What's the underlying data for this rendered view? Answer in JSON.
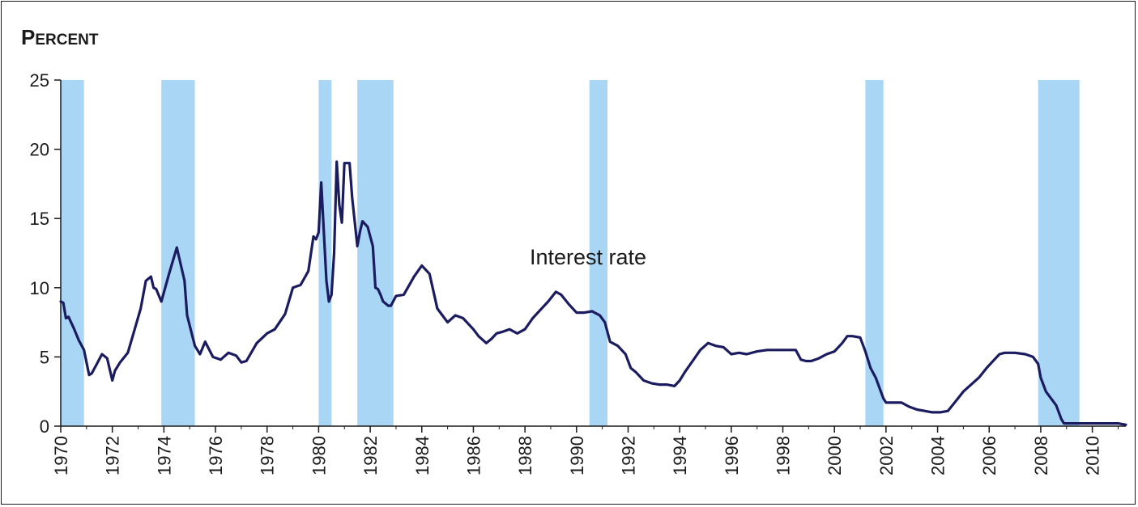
{
  "chart_data": {
    "type": "line",
    "ylabel": "Percent",
    "ylim": [
      0,
      25
    ],
    "yticks": [
      0,
      5,
      10,
      15,
      20,
      25
    ],
    "xlim": [
      1970,
      2011.3
    ],
    "xticks": [
      "1970",
      "1972",
      "1974",
      "1976",
      "1978",
      "1980",
      "1982",
      "1984",
      "1986",
      "1988",
      "1990",
      "1992",
      "1994",
      "1996",
      "1998",
      "2000",
      "2002",
      "2004",
      "2006",
      "2008",
      "2010"
    ],
    "annotation": "Interest rate",
    "shaded_periods": [
      [
        1970.0,
        1970.9
      ],
      [
        1973.9,
        1975.2
      ],
      [
        1980.0,
        1980.5
      ],
      [
        1981.5,
        1982.9
      ],
      [
        1990.5,
        1991.2
      ],
      [
        2001.2,
        2001.9
      ],
      [
        2007.9,
        2009.5
      ]
    ],
    "series": [
      {
        "x": [
          1970.0,
          1970.1,
          1970.2,
          1970.3,
          1970.5,
          1970.7,
          1970.9,
          1971.1,
          1971.2,
          1971.4,
          1971.6,
          1971.8,
          1972.0,
          1972.1,
          1972.3,
          1972.6,
          1972.9,
          1973.1,
          1973.3,
          1973.5,
          1973.6,
          1973.7,
          1973.9,
          1974.2,
          1974.5,
          1974.8,
          1974.9,
          1975.2,
          1975.4,
          1975.6,
          1975.9,
          1976.2,
          1976.5,
          1976.8,
          1977.0,
          1977.2,
          1977.6,
          1978.0,
          1978.3,
          1978.7,
          1979.0,
          1979.3,
          1979.6,
          1979.8,
          1979.9,
          1980.0,
          1980.1,
          1980.3,
          1980.4,
          1980.5,
          1980.6,
          1980.7,
          1980.8,
          1980.9,
          1981.0,
          1981.2,
          1981.3,
          1981.5,
          1981.6,
          1981.7,
          1981.9,
          1982.1,
          1982.2,
          1982.3,
          1982.4,
          1982.5,
          1982.7,
          1982.8,
          1983.0,
          1983.3,
          1983.7,
          1984.0,
          1984.3,
          1984.6,
          1984.8,
          1985.0,
          1985.3,
          1985.6,
          1986.0,
          1986.2,
          1986.5,
          1986.7,
          1986.9,
          1987.1,
          1987.4,
          1987.7,
          1988.0,
          1988.3,
          1988.6,
          1988.9,
          1989.2,
          1989.4,
          1989.7,
          1990.0,
          1990.3,
          1990.6,
          1990.9,
          1991.1,
          1991.3,
          1991.6,
          1991.9,
          1992.1,
          1992.3,
          1992.6,
          1992.9,
          1993.2,
          1993.5,
          1993.8,
          1994.0,
          1994.2,
          1994.5,
          1994.8,
          1995.1,
          1995.4,
          1995.7,
          1996.0,
          1996.3,
          1996.6,
          1997.0,
          1997.4,
          1997.8,
          1998.2,
          1998.5,
          1998.7,
          1998.9,
          1999.1,
          1999.4,
          1999.7,
          2000.0,
          2000.3,
          2000.5,
          2000.7,
          2001.0,
          2001.2,
          2001.4,
          2001.6,
          2001.8,
          2001.9,
          2002.0,
          2002.3,
          2002.6,
          2002.9,
          2003.2,
          2003.5,
          2003.8,
          2004.1,
          2004.4,
          2004.7,
          2005.0,
          2005.3,
          2005.6,
          2005.9,
          2006.2,
          2006.4,
          2006.6,
          2007.0,
          2007.4,
          2007.7,
          2007.9,
          2008.0,
          2008.2,
          2008.4,
          2008.6,
          2008.8,
          2008.9,
          2009.0,
          2009.2,
          2009.6,
          2010.0,
          2010.5,
          2011.0,
          2011.3
        ],
        "values": [
          9.0,
          8.9,
          7.8,
          7.9,
          7.1,
          6.2,
          5.5,
          3.7,
          3.8,
          4.5,
          5.2,
          4.9,
          3.3,
          4.0,
          4.6,
          5.3,
          7.2,
          8.5,
          10.5,
          10.8,
          10.0,
          9.9,
          9.0,
          11.0,
          12.9,
          10.5,
          8.0,
          5.8,
          5.2,
          6.1,
          5.0,
          4.8,
          5.3,
          5.1,
          4.6,
          4.7,
          6.0,
          6.7,
          7.0,
          8.1,
          10.0,
          10.2,
          11.2,
          13.7,
          13.5,
          14.0,
          17.6,
          10.5,
          9.0,
          9.5,
          12.5,
          19.1,
          16.0,
          14.7,
          19.0,
          19.0,
          16.5,
          13.0,
          14.0,
          14.8,
          14.4,
          13.0,
          10.0,
          9.9,
          9.5,
          9.0,
          8.7,
          8.7,
          9.4,
          9.5,
          10.8,
          11.6,
          11.0,
          8.5,
          8.0,
          7.5,
          8.0,
          7.8,
          7.0,
          6.5,
          6.0,
          6.3,
          6.7,
          6.8,
          7.0,
          6.7,
          7.0,
          7.8,
          8.4,
          9.0,
          9.7,
          9.5,
          8.8,
          8.2,
          8.2,
          8.3,
          8.0,
          7.5,
          6.1,
          5.8,
          5.2,
          4.2,
          3.9,
          3.3,
          3.1,
          3.0,
          3.0,
          2.9,
          3.3,
          3.9,
          4.7,
          5.5,
          6.0,
          5.8,
          5.7,
          5.2,
          5.3,
          5.2,
          5.4,
          5.5,
          5.5,
          5.5,
          5.5,
          4.8,
          4.7,
          4.7,
          4.9,
          5.2,
          5.4,
          6.0,
          6.5,
          6.5,
          6.4,
          5.4,
          4.2,
          3.5,
          2.5,
          2.0,
          1.7,
          1.7,
          1.7,
          1.4,
          1.2,
          1.1,
          1.0,
          1.0,
          1.1,
          1.8,
          2.5,
          3.0,
          3.5,
          4.2,
          4.8,
          5.2,
          5.3,
          5.3,
          5.2,
          5.0,
          4.5,
          3.5,
          2.5,
          2.0,
          1.5,
          0.5,
          0.2,
          0.2,
          0.2,
          0.2,
          0.2,
          0.2,
          0.2,
          0.1
        ]
      }
    ]
  },
  "colors": {
    "line": "#1b1b5f",
    "shade": "#a9d6f5",
    "axis": "#1a1a1a"
  }
}
